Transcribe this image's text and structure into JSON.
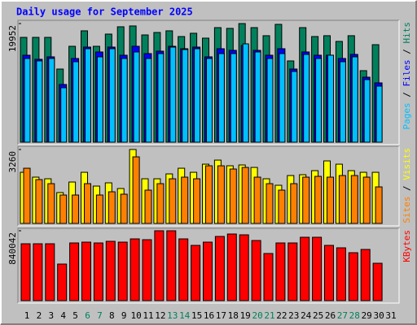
{
  "title": "Daily usage for September 2025",
  "legend_separator": " / ",
  "chart_data": [
    {
      "type": "bar",
      "categories": [
        "1",
        "2",
        "3",
        "4",
        "5",
        "6",
        "7",
        "8",
        "9",
        "10",
        "11",
        "12",
        "13",
        "14",
        "15",
        "16",
        "17",
        "18",
        "19",
        "20",
        "21",
        "22",
        "23",
        "24",
        "25",
        "26",
        "27",
        "28",
        "29",
        "30",
        "31"
      ],
      "category_colors": [
        "#000000",
        "#000000",
        "#000000",
        "#000000",
        "#000000",
        "#00805c",
        "#00805c",
        "#000000",
        "#000000",
        "#000000",
        "#000000",
        "#000000",
        "#00805c",
        "#00805c",
        "#000000",
        "#000000",
        "#000000",
        "#000000",
        "#000000",
        "#00805c",
        "#00805c",
        "#000000",
        "#000000",
        "#000000",
        "#000000",
        "#000000",
        "#00805c",
        "#00805c",
        "#000000",
        "#000000",
        "#000000"
      ],
      "ylim": [
        0,
        19952
      ],
      "yticks": [
        19952
      ],
      "series": [
        {
          "name": "Hits",
          "color": "#00805c",
          "values": [
            17630,
            17630,
            17630,
            12300,
            16130,
            18730,
            16130,
            18180,
            19410,
            19550,
            18040,
            18450,
            18730,
            17770,
            18320,
            17500,
            19270,
            19140,
            19952,
            19270,
            17910,
            19820,
            13670,
            19270,
            17770,
            17910,
            16950,
            17910,
            12030,
            16400,
            null
          ]
        },
        {
          "name": "Files",
          "color": "#0000ff",
          "values": [
            14627,
            13943,
            14354,
            9706,
            14080,
            15994,
            15174,
            15994,
            14627,
            16131,
            14900,
            15310,
            16131,
            15721,
            15994,
            14354,
            15721,
            15447,
            16267,
            15447,
            14627,
            15721,
            12303,
            15174,
            14627,
            14627,
            14080,
            14764,
            10936,
            9979,
            null
          ]
        },
        {
          "name": "Pages",
          "color": "#00c0ff",
          "values": [
            14080,
            13670,
            14080,
            9159,
            13533,
            15721,
            14354,
            15721,
            14080,
            15174,
            14080,
            14900,
            15994,
            15584,
            15721,
            14080,
            14900,
            14900,
            16541,
            15174,
            14080,
            14900,
            11893,
            14764,
            14080,
            14627,
            13533,
            14354,
            10526,
            9432,
            null
          ]
        }
      ]
    },
    {
      "type": "bar",
      "ylim": [
        0,
        3260
      ],
      "yticks": [
        3260
      ],
      "series": [
        {
          "name": "Visits",
          "color": "#ffff00",
          "values": [
            2255,
            2041,
            1969,
            1360,
            1826,
            2255,
            1647,
            1790,
            1539,
            3260,
            1969,
            1969,
            2184,
            2434,
            2255,
            2613,
            2792,
            2542,
            2578,
            2470,
            1969,
            1683,
            2112,
            2148,
            2327,
            2757,
            2613,
            2327,
            2255,
            2255,
            null
          ]
        },
        {
          "name": "Sites",
          "color": "#ff8000",
          "values": [
            2434,
            1933,
            1754,
            1253,
            1253,
            1754,
            1253,
            1396,
            1289,
            2936,
            1468,
            1754,
            1969,
            2041,
            1969,
            2542,
            2542,
            2399,
            2470,
            2041,
            1754,
            1468,
            1754,
            2041,
            2076,
            2041,
            2112,
            2112,
            2041,
            1611,
            null
          ]
        }
      ]
    },
    {
      "type": "bar",
      "ylim": [
        0,
        840042
      ],
      "yticks": [
        840042
      ],
      "series": [
        {
          "name": "KBytes",
          "color": "#ff0000",
          "values": [
            683760,
            683760,
            683760,
            439560,
            693528,
            703296,
            693528,
            713064,
            703296,
            742368,
            732600,
            840042,
            840042,
            742368,
            664224,
            703296,
            771672,
            800976,
            791208,
            722832,
            566544,
            693528,
            693528,
            761904,
            761904,
            664224,
            634920,
            576312,
            615384,
            449328,
            null
          ]
        }
      ]
    }
  ]
}
